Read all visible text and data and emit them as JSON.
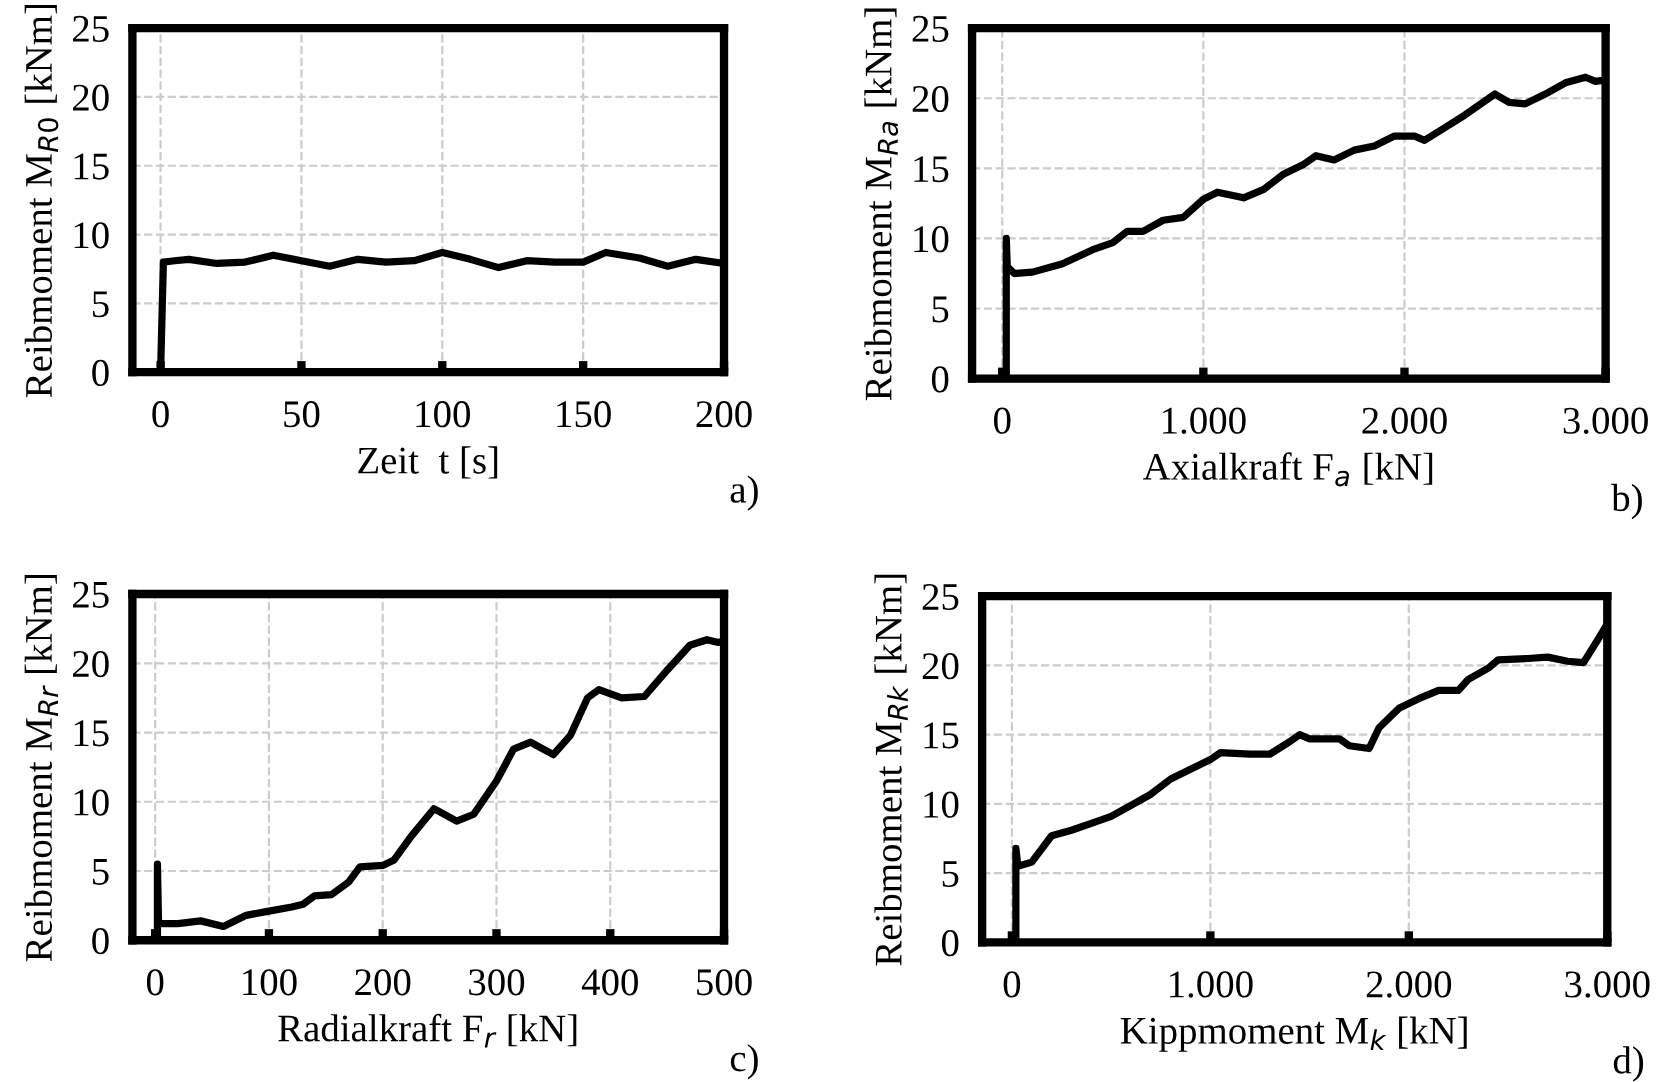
{
  "chart_data": [
    {
      "type": "line",
      "xlabel": "Zeit  t [s]",
      "ylabel": "Reibmoment M$_{R0}$ [kNm]",
      "annotations": [
        "a)"
      ],
      "xlim": [
        -10,
        200
      ],
      "ylim": [
        0,
        25
      ],
      "xticks": [
        0,
        50,
        100,
        150,
        200
      ],
      "yticks": [
        0,
        5,
        10,
        15,
        20,
        25
      ],
      "grid": true,
      "legend": false,
      "color": "#000000",
      "x": [
        0,
        1,
        5,
        10,
        20,
        30,
        40,
        50,
        60,
        70,
        80,
        90,
        100,
        110,
        120,
        130,
        140,
        150,
        158,
        170,
        180,
        190,
        200
      ],
      "values": [
        0,
        8,
        8.1,
        8.2,
        7.9,
        8.0,
        8.5,
        8.1,
        7.7,
        8.2,
        8.0,
        8.1,
        8.7,
        8.2,
        7.6,
        8.1,
        8.0,
        8.0,
        8.7,
        8.3,
        7.7,
        8.2,
        7.9
      ]
    },
    {
      "type": "line",
      "xlabel": "Axialkraft F$_{a}$ [kN]",
      "ylabel": "Reibmoment M$_{Ra}$ [kNm]",
      "annotations": [
        "b)"
      ],
      "xlim": [
        -150,
        3000
      ],
      "ylim": [
        0,
        25
      ],
      "xticks": [
        0,
        {
          "value": 1000,
          "label": "1.000"
        },
        {
          "value": 2000,
          "label": "2.000"
        },
        {
          "value": 3000,
          "label": "3.000"
        }
      ],
      "yticks": [
        0,
        5,
        10,
        15,
        20,
        25
      ],
      "grid": true,
      "legend": false,
      "color": "#000000",
      "x": [
        20,
        20,
        25,
        60,
        150,
        300,
        450,
        550,
        620,
        700,
        800,
        900,
        1000,
        1070,
        1200,
        1300,
        1400,
        1500,
        1560,
        1650,
        1750,
        1850,
        1950,
        2050,
        2100,
        2200,
        2300,
        2400,
        2450,
        2520,
        2600,
        2700,
        2800,
        2900,
        2950,
        3000
      ],
      "values": [
        0,
        10,
        8,
        7.5,
        7.6,
        8.2,
        9.2,
        9.7,
        10.5,
        10.5,
        11.3,
        11.5,
        12.8,
        13.3,
        12.9,
        13.5,
        14.6,
        15.3,
        15.9,
        15.6,
        16.3,
        16.6,
        17.3,
        17.3,
        17.0,
        17.9,
        18.8,
        19.8,
        20.3,
        19.7,
        19.6,
        20.3,
        21.1,
        21.5,
        21.2,
        21.3
      ]
    },
    {
      "type": "line",
      "xlabel": "Radialkraft F$_{r}$ [kN]",
      "ylabel": "Reibmoment M$_{Rr}$ [kNm]",
      "annotations": [
        "c)"
      ],
      "xlim": [
        -20,
        500
      ],
      "ylim": [
        0,
        25
      ],
      "xticks": [
        0,
        100,
        200,
        300,
        400,
        500
      ],
      "yticks": [
        0,
        5,
        10,
        15,
        20,
        25
      ],
      "grid": true,
      "legend": false,
      "color": "#000000",
      "x": [
        2,
        2,
        3,
        20,
        40,
        60,
        80,
        100,
        120,
        130,
        140,
        155,
        170,
        180,
        200,
        210,
        225,
        245,
        265,
        280,
        300,
        315,
        330,
        350,
        365,
        380,
        390,
        410,
        430,
        450,
        470,
        485,
        495,
        500
      ],
      "values": [
        0,
        5.5,
        1.2,
        1.2,
        1.4,
        1.0,
        1.8,
        2.1,
        2.4,
        2.6,
        3.2,
        3.3,
        4.2,
        5.3,
        5.4,
        5.8,
        7.5,
        9.5,
        8.6,
        9.1,
        11.5,
        13.8,
        14.3,
        13.4,
        14.8,
        17.5,
        18.1,
        17.5,
        17.6,
        19.5,
        21.3,
        21.7,
        21.5,
        21.6
      ]
    },
    {
      "type": "line",
      "xlabel": "Kippmoment M$_{k}$ [kN]",
      "ylabel": "Reibmoment M$_{Rk}$ [kNm]",
      "annotations": [
        "d)"
      ],
      "xlim": [
        -150,
        3000
      ],
      "ylim": [
        0,
        25
      ],
      "xticks": [
        0,
        {
          "value": 1000,
          "label": "1.000"
        },
        {
          "value": 2000,
          "label": "2.000"
        },
        {
          "value": 3000,
          "label": "3.000"
        }
      ],
      "yticks": [
        0,
        5,
        10,
        15,
        20,
        25
      ],
      "grid": true,
      "legend": false,
      "color": "#000000",
      "x": [
        20,
        20,
        30,
        100,
        200,
        300,
        400,
        500,
        600,
        700,
        800,
        900,
        1000,
        1050,
        1200,
        1300,
        1400,
        1450,
        1500,
        1650,
        1700,
        1800,
        1850,
        1950,
        2050,
        2150,
        2250,
        2300,
        2400,
        2450,
        2600,
        2700,
        2800,
        2880,
        2950,
        3000
      ],
      "values": [
        0,
        6.8,
        5.5,
        5.8,
        7.7,
        8.1,
        8.6,
        9.1,
        9.9,
        10.7,
        11.8,
        12.5,
        13.2,
        13.7,
        13.6,
        13.6,
        14.5,
        15.0,
        14.7,
        14.7,
        14.2,
        14.0,
        15.5,
        16.9,
        17.6,
        18.2,
        18.2,
        19.0,
        19.8,
        20.4,
        20.5,
        20.6,
        20.3,
        20.2,
        21.8,
        23.0
      ]
    }
  ]
}
